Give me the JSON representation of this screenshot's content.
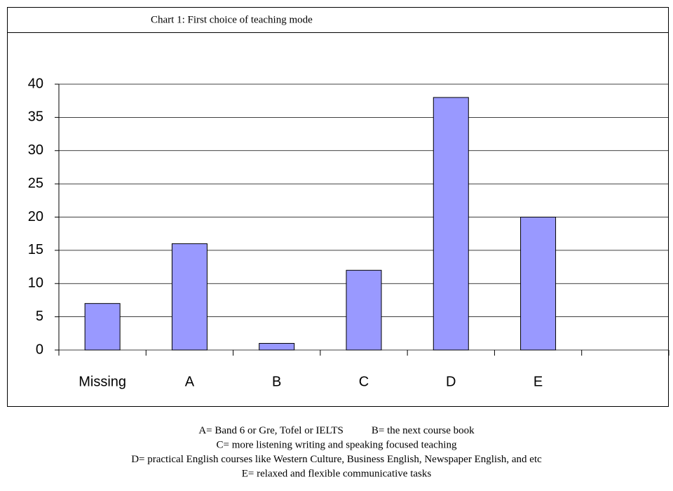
{
  "chart_data": {
    "type": "bar",
    "title": "Chart 1: First choice of teaching mode",
    "categories": [
      "Missing",
      "A",
      "B",
      "C",
      "D",
      "E",
      null
    ],
    "values": [
      7,
      16,
      1,
      12,
      38,
      20,
      null
    ],
    "color": "#9999ff",
    "ylim": [
      0,
      40
    ],
    "yticks": [
      0,
      5,
      10,
      15,
      20,
      25,
      30,
      35,
      40
    ],
    "grid": true,
    "notes": [
      [
        "A= Band 6 or Gre, Tofel or IELTS",
        "B= the next course book"
      ],
      [
        "C= more listening writing and speaking focused teaching"
      ],
      [
        "D= practical English courses like Western Culture, Business English, Newspaper English, and etc"
      ],
      [
        "E= relaxed and flexible communicative tasks"
      ]
    ]
  }
}
